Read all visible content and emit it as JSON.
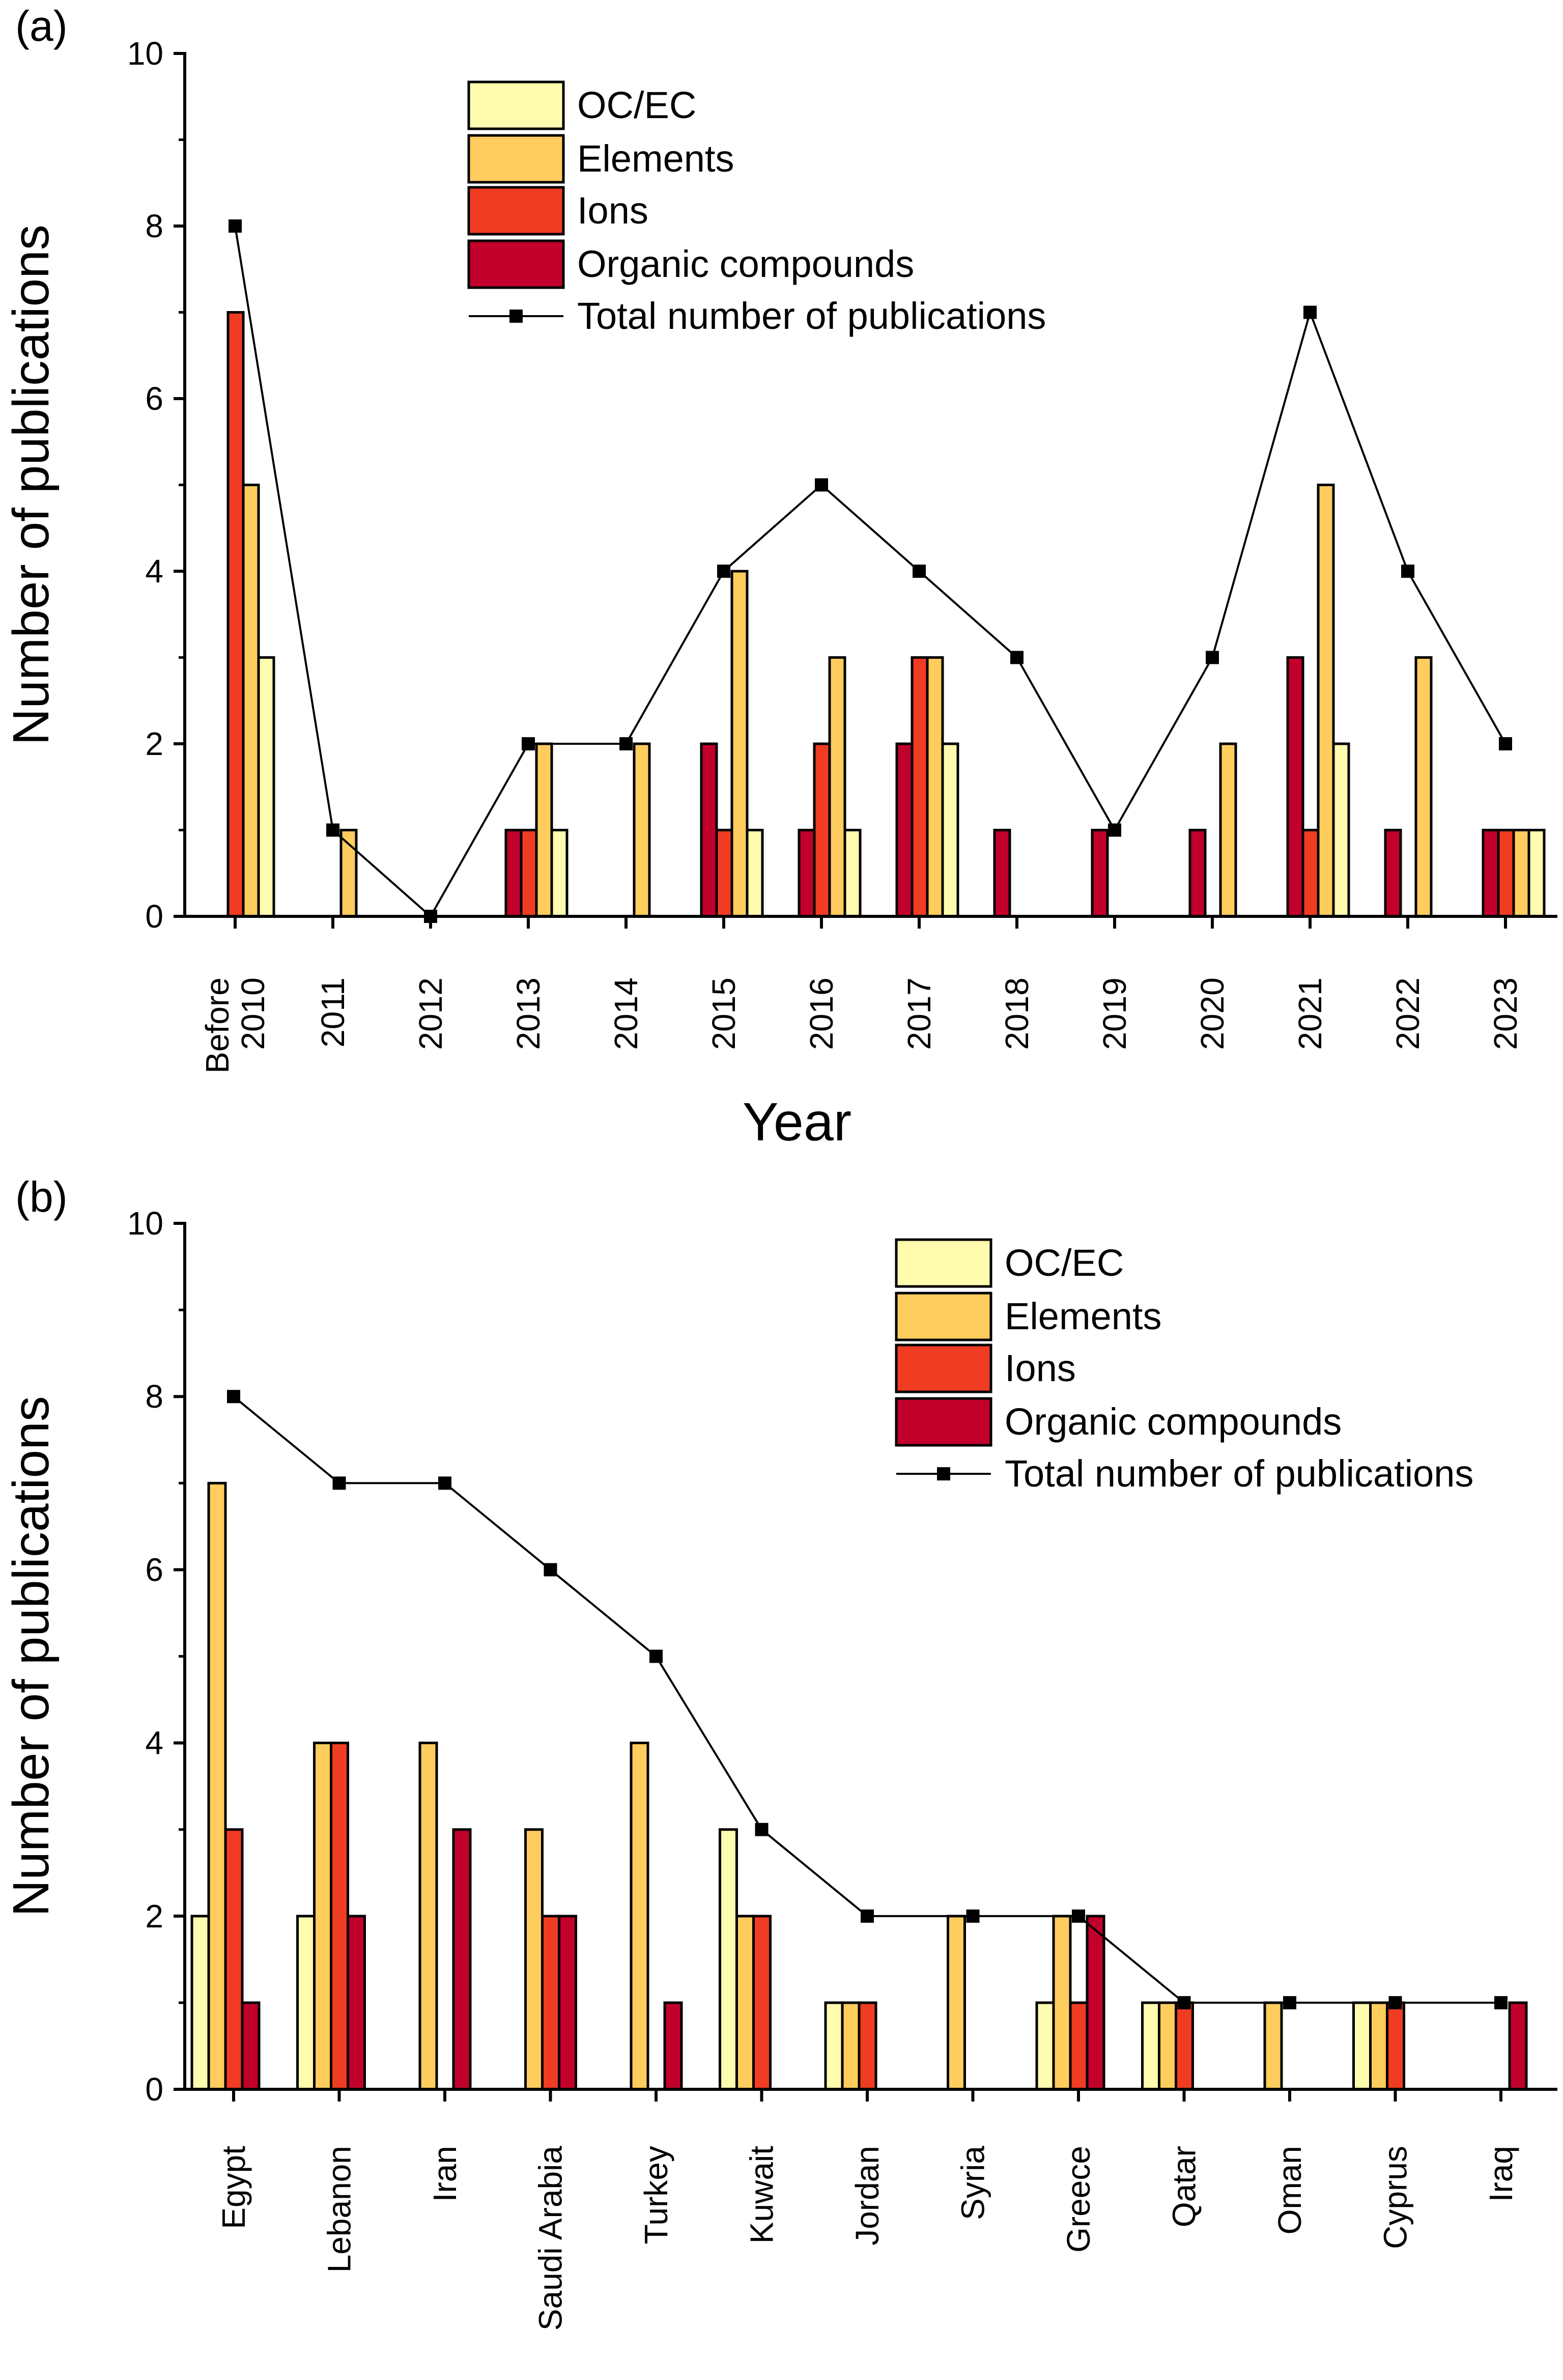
{
  "colors": {
    "OC/EC": "#FFFBAF",
    "Elements": "#FFCC5E",
    "Ions": "#F03C22",
    "Organic compounds": "#C1002B",
    "total": "#000000"
  },
  "chart_data": [
    {
      "type": "bar",
      "panel_label": "(a)",
      "title": "",
      "xlabel": "Year",
      "ylabel": "Number of publications",
      "ylim": [
        0,
        10
      ],
      "yticks": [
        "0",
        "2",
        "4",
        "6",
        "8",
        "10"
      ],
      "legend_position": "top-center",
      "bar_order": [
        "Organic compounds",
        "Ions",
        "Elements",
        "OC/EC"
      ],
      "categories": [
        [
          "Before",
          "2010"
        ],
        [
          "2011"
        ],
        [
          "2012"
        ],
        [
          "2013"
        ],
        [
          "2014"
        ],
        [
          "2015"
        ],
        [
          "2016"
        ],
        [
          "2017"
        ],
        [
          "2018"
        ],
        [
          "2019"
        ],
        [
          "2020"
        ],
        [
          "2021"
        ],
        [
          "2022"
        ],
        [
          "2023"
        ]
      ],
      "legend": [
        "OC/EC",
        "Elements",
        "Ions",
        "Organic compounds",
        "Total number of publications"
      ],
      "series": [
        {
          "name": "OC/EC",
          "values": [
            3,
            0,
            0,
            1,
            0,
            1,
            1,
            2,
            0,
            0,
            0,
            2,
            0,
            1
          ]
        },
        {
          "name": "Elements",
          "values": [
            5,
            1,
            0,
            2,
            2,
            4,
            3,
            3,
            0,
            0,
            2,
            5,
            3,
            1
          ]
        },
        {
          "name": "Ions",
          "values": [
            7,
            0,
            0,
            1,
            0,
            1,
            2,
            3,
            0,
            0,
            0,
            1,
            0,
            1
          ]
        },
        {
          "name": "Organic compounds",
          "values": [
            0,
            0,
            0,
            1,
            0,
            2,
            1,
            2,
            1,
            1,
            1,
            3,
            1,
            1
          ]
        },
        {
          "name": "Total number of publications",
          "type": "line",
          "values": [
            8,
            1,
            0,
            2,
            2,
            4,
            5,
            4,
            3,
            1,
            3,
            7,
            4,
            2
          ]
        }
      ]
    },
    {
      "type": "bar",
      "panel_label": "(b)",
      "title": "",
      "xlabel": "",
      "ylabel": "Number of publications",
      "ylim": [
        0,
        10
      ],
      "yticks": [
        "0",
        "2",
        "4",
        "6",
        "8",
        "10"
      ],
      "legend_position": "top-right",
      "bar_order": [
        "OC/EC",
        "Elements",
        "Ions",
        "Organic compounds"
      ],
      "categories": [
        [
          "Egypt"
        ],
        [
          "Lebanon"
        ],
        [
          "Iran"
        ],
        [
          "Saudi Arabia"
        ],
        [
          "Turkey"
        ],
        [
          "Kuwait"
        ],
        [
          "Jordan"
        ],
        [
          "Syria"
        ],
        [
          "Greece"
        ],
        [
          "Qatar"
        ],
        [
          "Oman"
        ],
        [
          "Cyprus"
        ],
        [
          "Iraq"
        ]
      ],
      "legend": [
        "OC/EC",
        "Elements",
        "Ions",
        "Organic compounds",
        "Total number of publications"
      ],
      "series": [
        {
          "name": "OC/EC",
          "values": [
            2,
            2,
            0,
            0,
            0,
            3,
            1,
            0,
            1,
            1,
            0,
            1,
            0
          ]
        },
        {
          "name": "Elements",
          "values": [
            7,
            4,
            4,
            3,
            4,
            2,
            1,
            2,
            2,
            1,
            1,
            1,
            0
          ]
        },
        {
          "name": "Ions",
          "values": [
            3,
            4,
            0,
            2,
            0,
            2,
            1,
            0,
            1,
            1,
            0,
            1,
            0
          ]
        },
        {
          "name": "Organic compounds",
          "values": [
            1,
            2,
            3,
            2,
            1,
            0,
            0,
            0,
            2,
            0,
            0,
            0,
            1
          ]
        },
        {
          "name": "Total number of publications",
          "type": "line",
          "values": [
            8,
            7,
            7,
            6,
            5,
            3,
            2,
            2,
            2,
            1,
            1,
            1,
            1
          ]
        }
      ]
    }
  ]
}
